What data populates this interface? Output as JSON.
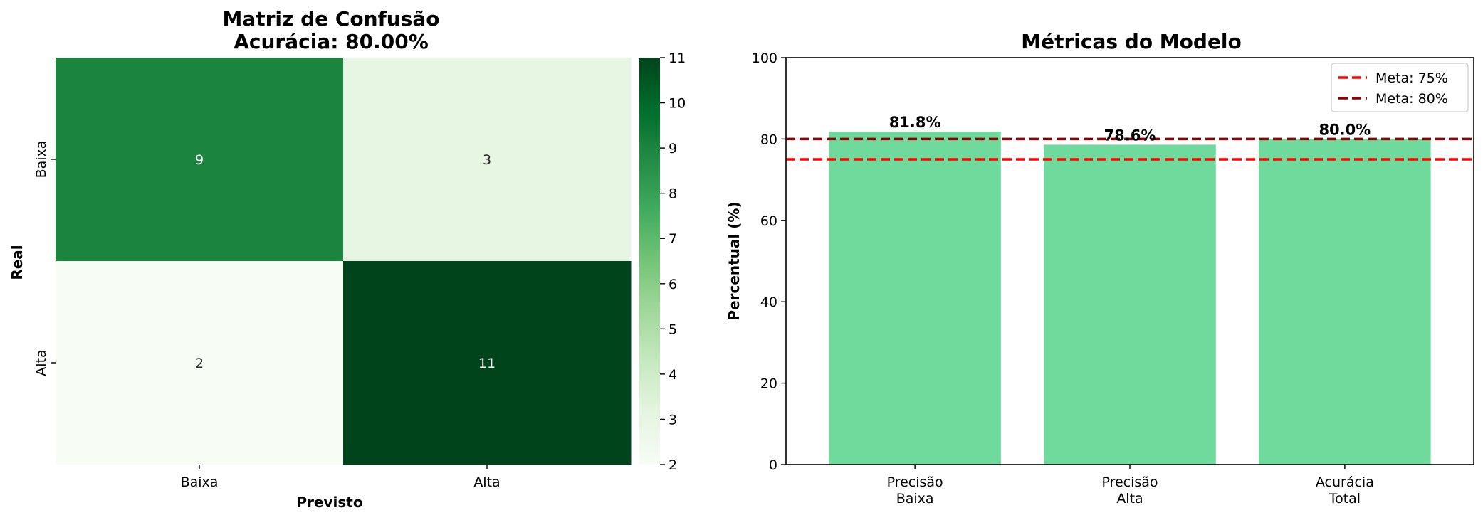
{
  "chart_data": [
    {
      "type": "heatmap",
      "title_line1": "Matriz de Confusão",
      "title_line2": "Acurácia: 80.00%",
      "xlabel": "Previsto",
      "ylabel": "Real",
      "x_categories": [
        "Baixa",
        "Alta"
      ],
      "y_categories": [
        "Baixa",
        "Alta"
      ],
      "values": [
        [
          9,
          3
        ],
        [
          2,
          11
        ]
      ],
      "colormap": "Greens",
      "colorbar": {
        "min": 2,
        "max": 11,
        "ticks": [
          2,
          3,
          4,
          5,
          6,
          7,
          8,
          9,
          10,
          11
        ],
        "tick_labels": [
          "2",
          "3",
          "4",
          "5",
          "6",
          "7",
          "8",
          "9",
          "10",
          "11"
        ]
      }
    },
    {
      "type": "bar",
      "title": "Métricas do Modelo",
      "xlabel": "",
      "ylabel": "Percentual (%)",
      "categories": [
        [
          "Precisão",
          "Baixa"
        ],
        [
          "Precisão",
          "Alta"
        ],
        [
          "Acurácia",
          "Total"
        ]
      ],
      "values": [
        81.8,
        78.6,
        80.0
      ],
      "value_labels": [
        "81.8%",
        "78.6%",
        "80.0%"
      ],
      "ylim": [
        0,
        100
      ],
      "yticks": [
        0,
        20,
        40,
        60,
        80,
        100
      ],
      "ytick_labels": [
        "0",
        "20",
        "40",
        "60",
        "80",
        "100"
      ],
      "bar_color": "#6fda9c",
      "reference_lines": [
        {
          "value": 75,
          "label": "Meta: 75%",
          "color": "#ff0000"
        },
        {
          "value": 80,
          "label": "Meta: 80%",
          "color": "#8b0000"
        }
      ],
      "legend_position": "top-right",
      "grid": false
    }
  ]
}
